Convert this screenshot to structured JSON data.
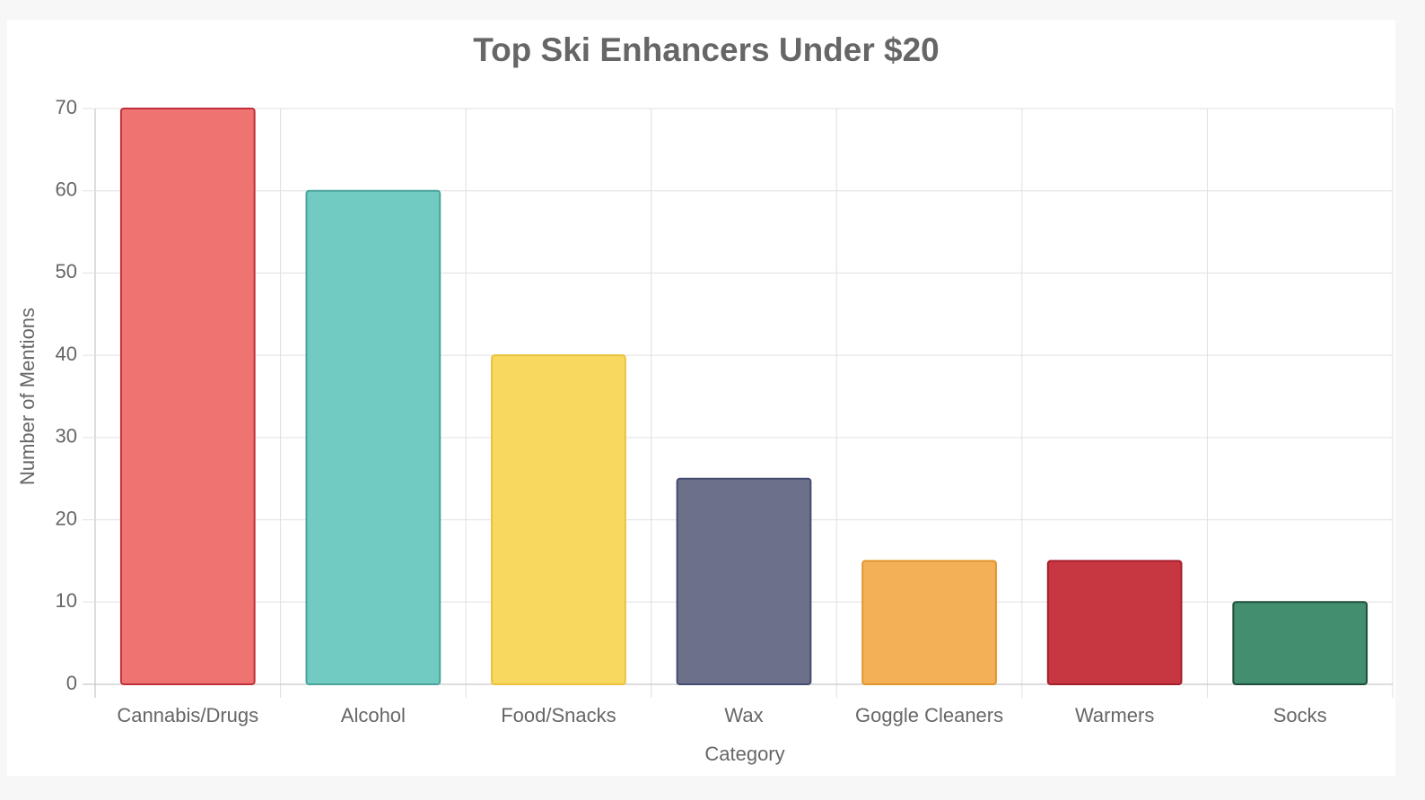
{
  "chart_data": {
    "type": "bar",
    "title": "Top Ski Enhancers Under $20",
    "x_label": "Category",
    "y_label": "Number of Mentions",
    "categories": [
      "Cannabis/Drugs",
      "Alcohol",
      "Food/Snacks",
      "Wax",
      "Goggle Cleaners",
      "Warmers",
      "Socks"
    ],
    "values": [
      70,
      60,
      40,
      25,
      15,
      15,
      10
    ],
    "colors": [
      "#ef7370",
      "#72cbc2",
      "#f8d85f",
      "#6c7089",
      "#f4b056",
      "#c73742",
      "#438e6e"
    ],
    "border_colors": [
      "#c0303a",
      "#4aa49b",
      "#e8c23e",
      "#464c70",
      "#e0962e",
      "#a41f2c",
      "#1f4e3a"
    ],
    "ylim": [
      0,
      70
    ],
    "yticks": [
      0,
      10,
      20,
      30,
      40,
      50,
      60,
      70
    ],
    "grid": true
  }
}
